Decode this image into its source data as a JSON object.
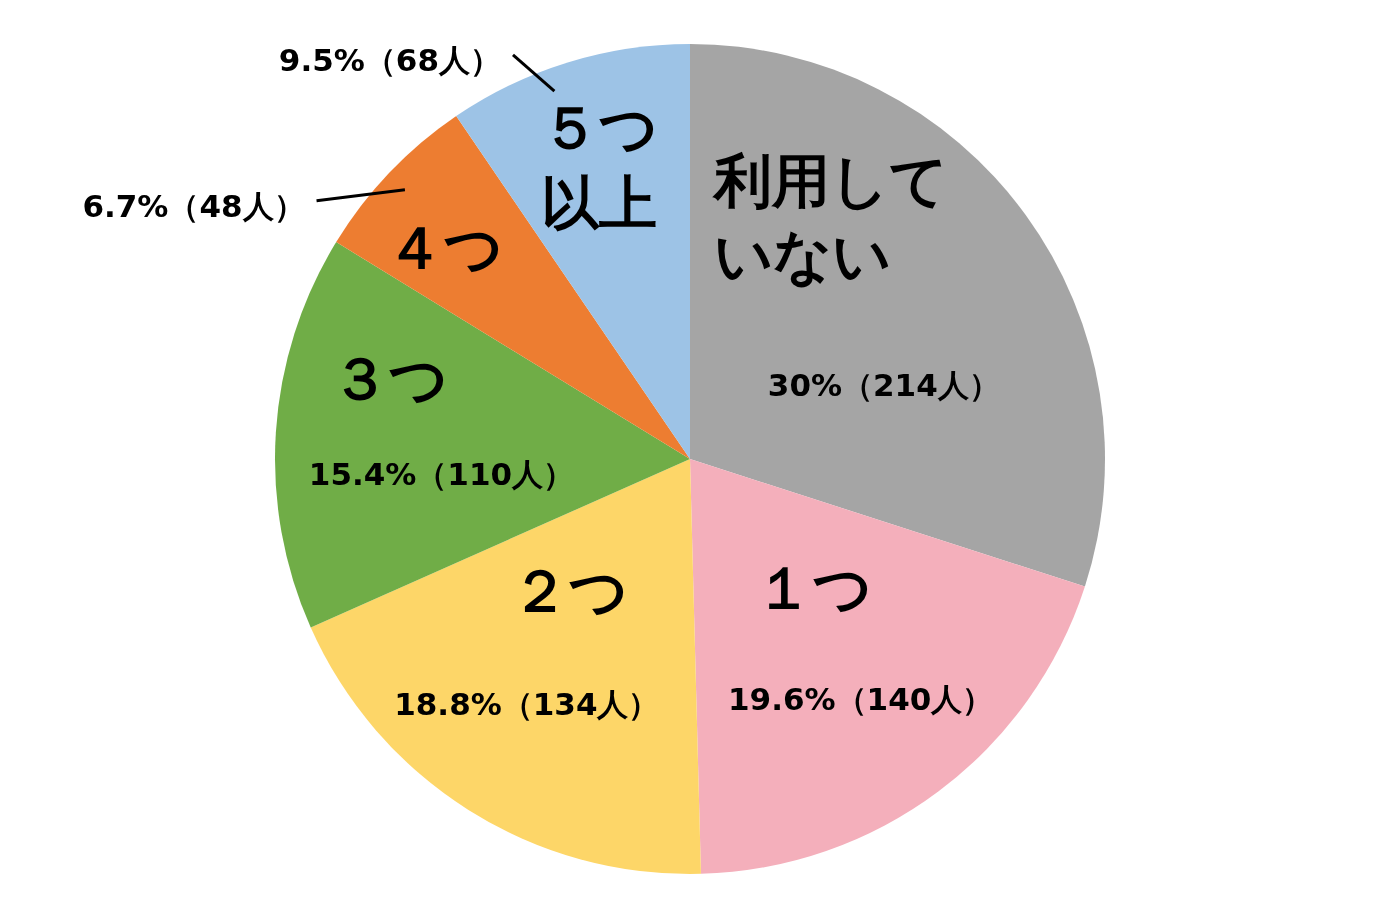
{
  "chart_data": {
    "type": "pie",
    "categories": [
      "利用していない",
      "１つ",
      "２つ",
      "３つ",
      "４つ",
      "５つ以上"
    ],
    "values": [
      214,
      140,
      134,
      110,
      48,
      68
    ],
    "colors": [
      "#a5a5a5",
      "#f4afbb",
      "#fdd668",
      "#70ad47",
      "#ed7d31",
      "#9dc3e6"
    ],
    "value_labels": [
      "30%（214人）",
      "19.6%（140人）",
      "18.8%（134人）",
      "15.4%（110人）",
      "6.7%（48人）",
      "9.5%（68人）"
    ]
  }
}
